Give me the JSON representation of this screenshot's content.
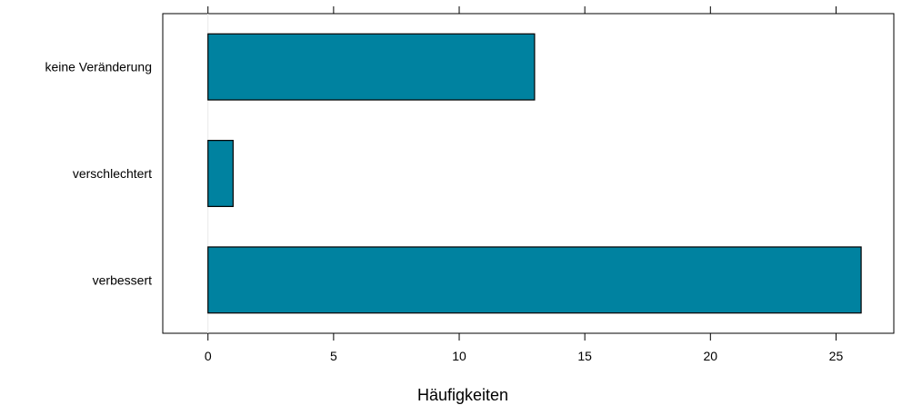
{
  "chart_data": {
    "type": "bar",
    "orientation": "horizontal",
    "categories": [
      "verbessert",
      "verschlechtert",
      "keine Veränderung"
    ],
    "values": [
      26,
      1,
      13
    ],
    "xlabel": "Häufigkeiten",
    "ylabel": "",
    "title": "",
    "xlim": [
      -1.8,
      27.3
    ],
    "xticks": [
      0,
      5,
      10,
      15,
      20,
      25
    ],
    "xtick_labels": [
      "0",
      "5",
      "10",
      "15",
      "20",
      "25"
    ],
    "ticks_top": true,
    "zero_reference_line": true,
    "grid": false,
    "legend": "none",
    "bar_color": "#0082a0",
    "bar_edge_color": "#000000",
    "reference_line_color": "#e8e8e8"
  }
}
